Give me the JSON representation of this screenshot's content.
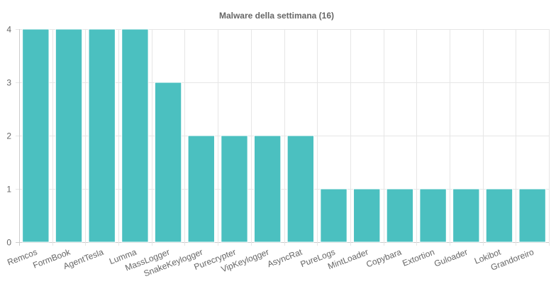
{
  "chart_data": {
    "type": "bar",
    "title": "Malware della settimana (16)",
    "categories": [
      "Remcos",
      "FormBook",
      "AgentTesla",
      "Lumma",
      "MassLogger",
      "SnakeKeylogger",
      "Purecrypter",
      "VipKeylogger",
      "AsyncRat",
      "PureLogs",
      "MintLoader",
      "Copybara",
      "Extortion",
      "Guloader",
      "Lokibot",
      "Grandoreiro"
    ],
    "values": [
      4,
      4,
      4,
      4,
      3,
      2,
      2,
      2,
      2,
      1,
      1,
      1,
      1,
      1,
      1,
      1
    ],
    "xlabel": "",
    "ylabel": "",
    "ylim": [
      0,
      4
    ],
    "yticks": [
      0,
      1,
      2,
      3,
      4
    ],
    "grid": true,
    "legend": "none",
    "bar_color": "#4bc0c0",
    "bar_border_color": "#ffffff"
  }
}
